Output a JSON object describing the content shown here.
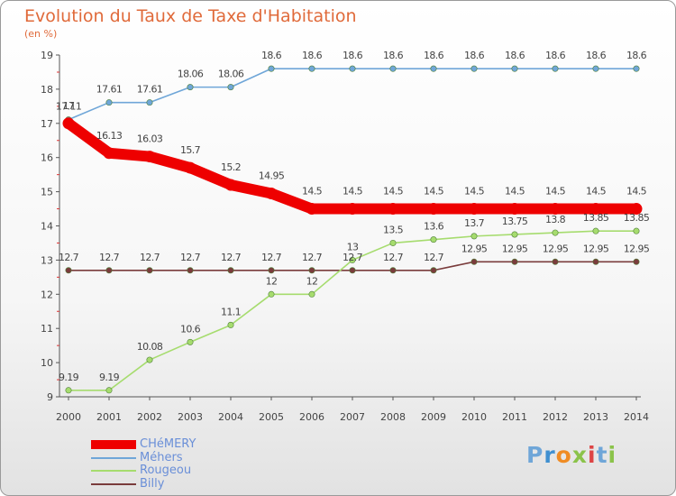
{
  "header": {
    "title": "Evolution du Taux de Taxe d'Habitation",
    "unit": "(en %)"
  },
  "chart_data": {
    "type": "line",
    "title": "Evolution du Taux de Taxe d'Habitation",
    "ylabel": "(en %)",
    "xlabel": "",
    "x": [
      "2000",
      "2001",
      "2002",
      "2003",
      "2004",
      "2005",
      "2006",
      "2007",
      "2008",
      "2009",
      "2010",
      "2011",
      "2012",
      "2013",
      "2014"
    ],
    "ylim": [
      9,
      19
    ],
    "yticks": [
      9,
      10,
      11,
      12,
      13,
      14,
      15,
      16,
      17,
      18,
      19
    ],
    "grid": false,
    "legend_position": "bottom-left",
    "series": [
      {
        "name": "CHéMERY",
        "color": "#ee0000",
        "values": [
          17,
          16.13,
          16.03,
          15.7,
          15.2,
          14.95,
          14.5,
          14.5,
          14.5,
          14.5,
          14.5,
          14.5,
          14.5,
          14.5,
          14.5
        ],
        "labels": [
          "17",
          "16.13",
          "16.03",
          "15.7",
          "15.2",
          "14.95",
          "14.5",
          "14.5",
          "14.5",
          "14.5",
          "14.5",
          "14.5",
          "14.5",
          "14.5",
          "14.5"
        ]
      },
      {
        "name": "Méhers",
        "color": "#6fa6d8",
        "values": [
          17.11,
          17.61,
          17.61,
          18.06,
          18.06,
          18.6,
          18.6,
          18.6,
          18.6,
          18.6,
          18.6,
          18.6,
          18.6,
          18.6,
          18.6
        ],
        "labels": [
          "17.11",
          "17.61",
          "17.61",
          "18.06",
          "18.06",
          "18.6",
          "18.6",
          "18.6",
          "18.6",
          "18.6",
          "18.6",
          "18.6",
          "18.6",
          "18.6",
          "18.6"
        ]
      },
      {
        "name": "Rougeou",
        "color": "#a6dc6e",
        "values": [
          9.19,
          9.19,
          10.08,
          10.6,
          11.1,
          12,
          12,
          13,
          13.5,
          13.6,
          13.7,
          13.75,
          13.8,
          13.85,
          13.85
        ],
        "labels": [
          "9.19",
          "9.19",
          "10.08",
          "10.6",
          "11.1",
          "12",
          "12",
          "13",
          "13.5",
          "13.6",
          "13.7",
          "13.75",
          "13.8",
          "13.85",
          "13.85"
        ]
      },
      {
        "name": "Billy",
        "color": "#7a3c3c",
        "values": [
          12.7,
          12.7,
          12.7,
          12.7,
          12.7,
          12.7,
          12.7,
          12.7,
          12.7,
          12.7,
          12.95,
          12.95,
          12.95,
          12.95,
          12.95
        ],
        "labels": [
          "12.7",
          "12.7",
          "12.7",
          "12.7",
          "12.7",
          "12.7",
          "12.7",
          "12.7",
          "12.7",
          "12.7",
          "12.95",
          "12.95",
          "12.95",
          "12.95",
          "12.95"
        ]
      }
    ]
  },
  "brand": {
    "letters": [
      "P",
      "r",
      "o",
      "x",
      "i",
      "t",
      "i"
    ],
    "colors": [
      "#6fa6d8",
      "#3f8fd0",
      "#f08c24",
      "#8bc34a",
      "#d44",
      "#6fa6d8",
      "#8bc34a"
    ]
  }
}
